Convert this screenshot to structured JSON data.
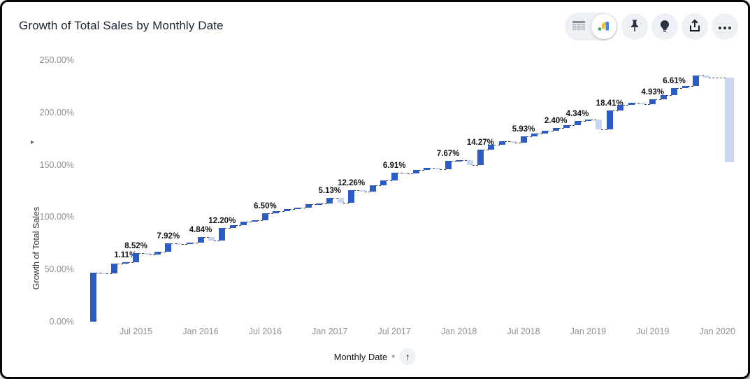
{
  "header": {
    "title": "Growth of Total Sales by Monthly Date"
  },
  "toolbar": {
    "view_toggle": {
      "options": [
        "table-view",
        "chart-view"
      ],
      "selected": "chart-view"
    },
    "buttons": [
      "pin",
      "suggestions",
      "export",
      "more-options"
    ],
    "chart_icon_colors": {
      "blue": "#4285f4",
      "yellow": "#fbbc04",
      "green": "#34a853"
    }
  },
  "footer_control": {
    "caret": "▾",
    "sort_arrow": "↑"
  },
  "y_axis": {
    "arrow": "▸"
  },
  "chart_data": {
    "type": "waterfall",
    "title": "Growth of Total Sales by Monthly Date",
    "ylabel": "Growth of Total Sales",
    "xlabel": "Monthly Date",
    "ylim": [
      0,
      250
    ],
    "grid": false,
    "legend": false,
    "colors": {
      "increase": "#2b5bc4",
      "decrease": "#c9d6f0"
    },
    "y_ticks": [
      {
        "label": "250.00%",
        "value": 250
      },
      {
        "label": "200.00%",
        "value": 200
      },
      {
        "label": "150.00%",
        "value": 150
      },
      {
        "label": "100.00%",
        "value": 100
      },
      {
        "label": "50.00%",
        "value": 50
      },
      {
        "label": "0.00%",
        "value": 0
      }
    ],
    "x_ticks": [
      {
        "label": "Jul 2015",
        "slot": 4
      },
      {
        "label": "Jan 2016",
        "slot": 10
      },
      {
        "label": "Jul 2016",
        "slot": 16
      },
      {
        "label": "Jan 2017",
        "slot": 22
      },
      {
        "label": "Jul 2017",
        "slot": 28
      },
      {
        "label": "Jan 2018",
        "slot": 34
      },
      {
        "label": "Jul 2018",
        "slot": 40
      },
      {
        "label": "Jan 2019",
        "slot": 46
      },
      {
        "label": "Jul 2019",
        "slot": 52
      },
      {
        "label": "Jan 2020",
        "slot": 58
      }
    ],
    "bars": [
      {
        "delta": 47.0
      },
      {
        "delta": -0.9
      },
      {
        "delta": 9.6
      },
      {
        "delta": 1.11,
        "label": "1.11%"
      },
      {
        "delta": 8.52,
        "label": "8.52%"
      },
      {
        "delta": -1.0
      },
      {
        "delta": 2.8
      },
      {
        "delta": 7.92,
        "label": "7.92%"
      },
      {
        "delta": -0.8
      },
      {
        "delta": 1.5
      },
      {
        "delta": 4.84,
        "label": "4.84%"
      },
      {
        "delta": -3.2
      },
      {
        "delta": 12.2,
        "label": "12.20%"
      },
      {
        "delta": 2.5
      },
      {
        "delta": 3.8
      },
      {
        "delta": 1.2
      },
      {
        "delta": 6.5,
        "label": "6.50%"
      },
      {
        "delta": 1.8
      },
      {
        "delta": 2.2
      },
      {
        "delta": 1.5
      },
      {
        "delta": 3.0
      },
      {
        "delta": 1.2
      },
      {
        "delta": 5.13,
        "label": "5.13%"
      },
      {
        "delta": -5.0
      },
      {
        "delta": 12.26,
        "label": "12.26%"
      },
      {
        "delta": -1.2
      },
      {
        "delta": 6.0
      },
      {
        "delta": 4.8
      },
      {
        "delta": 6.91,
        "label": "6.91%"
      },
      {
        "delta": -0.8
      },
      {
        "delta": 3.5
      },
      {
        "delta": 2.0
      },
      {
        "delta": -1.0
      },
      {
        "delta": 7.67,
        "label": "7.67%"
      },
      {
        "delta": 0.8
      },
      {
        "delta": -4.5
      },
      {
        "delta": 14.27,
        "label": "14.27%"
      },
      {
        "delta": 5.0
      },
      {
        "delta": 3.5
      },
      {
        "delta": -1.5
      },
      {
        "delta": 5.93,
        "label": "5.93%"
      },
      {
        "delta": 2.5
      },
      {
        "delta": 3.0
      },
      {
        "delta": 2.4,
        "label": "2.40%"
      },
      {
        "delta": 2.8
      },
      {
        "delta": 4.34,
        "label": "4.34%"
      },
      {
        "delta": 1.2
      },
      {
        "delta": -9.8
      },
      {
        "delta": 18.41,
        "label": "18.41%"
      },
      {
        "delta": 5.5
      },
      {
        "delta": 2.0
      },
      {
        "delta": -1.5
      },
      {
        "delta": 4.93,
        "label": "4.93%"
      },
      {
        "delta": 4.0
      },
      {
        "delta": 6.61,
        "label": "6.61%"
      },
      {
        "delta": 2.0
      },
      {
        "delta": 10.0
      },
      {
        "delta": -2.0
      },
      {
        "delta": -81.0
      }
    ]
  }
}
